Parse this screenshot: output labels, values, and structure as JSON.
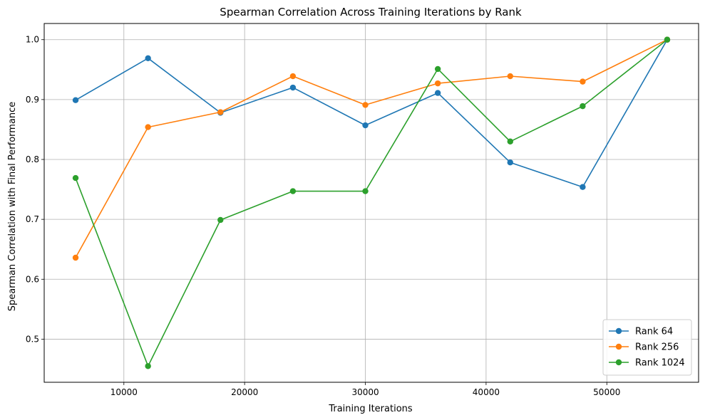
{
  "chart_data": {
    "type": "line",
    "title": "Spearman Correlation Across Training Iterations by Rank",
    "xlabel": "Training Iterations",
    "ylabel": "Spearman Correlation with Final Performance",
    "xlim": [
      3400,
      57600
    ],
    "ylim": [
      0.428,
      1.027
    ],
    "xticks": [
      10000,
      20000,
      30000,
      40000,
      50000
    ],
    "yticks": [
      0.5,
      0.6,
      0.7,
      0.8,
      0.9,
      1.0
    ],
    "xtick_labels": [
      "10000",
      "20000",
      "30000",
      "40000",
      "50000"
    ],
    "ytick_labels": [
      "0.5",
      "0.6",
      "0.7",
      "0.8",
      "0.9",
      "1.0"
    ],
    "grid": true,
    "legend_position": "bottom-right",
    "x": [
      6000,
      12000,
      18000,
      24000,
      30000,
      36000,
      42000,
      48000,
      55000
    ],
    "series": [
      {
        "name": "Rank 64",
        "color": "#1f77b4",
        "marker": "circle",
        "values": [
          0.899,
          0.969,
          0.878,
          0.92,
          0.857,
          0.911,
          0.795,
          0.754,
          1.0
        ]
      },
      {
        "name": "Rank 256",
        "color": "#ff7f0e",
        "marker": "circle",
        "values": [
          0.636,
          0.854,
          0.879,
          0.939,
          0.891,
          0.927,
          0.939,
          0.93,
          1.0
        ]
      },
      {
        "name": "Rank 1024",
        "color": "#2ca02c",
        "marker": "circle",
        "values": [
          0.769,
          0.455,
          0.699,
          0.747,
          0.747,
          0.951,
          0.83,
          0.889,
          1.0
        ]
      }
    ]
  }
}
